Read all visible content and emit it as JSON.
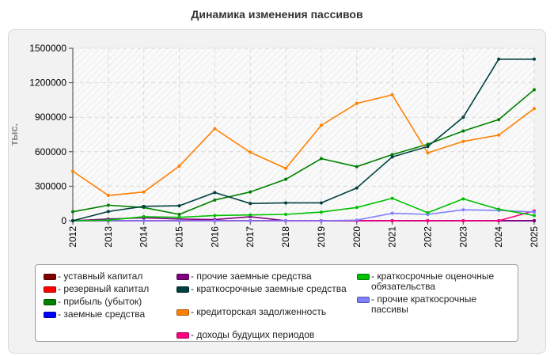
{
  "chart_data": {
    "type": "line",
    "title": "Динамика изменения пассивов",
    "ylabel": "тыс.",
    "xlabel": "",
    "ylim": [
      0,
      1500000
    ],
    "yticks": [
      0,
      300000,
      600000,
      900000,
      1200000,
      1500000
    ],
    "ytick_labels": [
      "0",
      "300000",
      "600000",
      "900000",
      "1200000",
      "1500000"
    ],
    "categories": [
      "2012",
      "2013",
      "2014",
      "2015",
      "2016",
      "2017",
      "2018",
      "2019",
      "2020",
      "2021",
      "2022",
      "2023",
      "2024",
      "2025"
    ],
    "grid": true,
    "legend_position": "bottom",
    "series": [
      {
        "name": "- уставный капитал",
        "color": "#800000",
        "values": [
          0,
          0,
          0,
          0,
          0,
          0,
          0,
          0,
          0,
          0,
          0,
          0,
          0,
          0
        ]
      },
      {
        "name": "- резервный капитал",
        "color": "#ff0000",
        "values": [
          0,
          0,
          0,
          0,
          0,
          0,
          0,
          0,
          0,
          0,
          0,
          0,
          0,
          0
        ]
      },
      {
        "name": "- прибыль (убыток)",
        "color": "#008000",
        "values": [
          78000,
          135000,
          115000,
          55000,
          180000,
          250000,
          360000,
          540000,
          470000,
          575000,
          665000,
          780000,
          880000,
          1140000
        ]
      },
      {
        "name": "- заемные средства",
        "color": "#0000ff",
        "values": [
          0,
          0,
          0,
          0,
          0,
          0,
          0,
          0,
          0,
          0,
          0,
          0,
          0,
          0
        ]
      },
      {
        "name": "- прочие заемные средства",
        "color": "#800080",
        "values": [
          0,
          15000,
          25000,
          15000,
          10000,
          35000,
          0,
          0,
          0,
          0,
          0,
          0,
          0,
          0
        ]
      },
      {
        "name": "- краткосрочные заемные средства",
        "color": "#004040",
        "values": [
          0,
          80000,
          125000,
          130000,
          245000,
          150000,
          155000,
          155000,
          285000,
          555000,
          645000,
          900000,
          1405000,
          1405000
        ]
      },
      {
        "name": "- кредиторская задолженность",
        "color": "#ff8000",
        "values": [
          430000,
          220000,
          250000,
          475000,
          800000,
          595000,
          455000,
          830000,
          1020000,
          1095000,
          590000,
          690000,
          745000,
          975000
        ]
      },
      {
        "name": "- доходы будущих периодов",
        "color": "#ff0080",
        "values": [
          0,
          0,
          0,
          0,
          0,
          0,
          0,
          0,
          0,
          0,
          0,
          0,
          0,
          85000
        ]
      },
      {
        "name": "- краткосрочные оценочные обязательства",
        "color": "#00c000",
        "values": [
          0,
          5000,
          35000,
          30000,
          45000,
          50000,
          55000,
          75000,
          115000,
          195000,
          70000,
          190000,
          100000,
          45000
        ]
      },
      {
        "name": "- прочие краткосрочные пассивы",
        "color": "#8080ff",
        "values": [
          0,
          0,
          0,
          0,
          0,
          0,
          0,
          0,
          5000,
          65000,
          55000,
          95000,
          90000,
          75000
        ]
      }
    ]
  },
  "legend_columns": [
    [
      0,
      1,
      2,
      3
    ],
    [
      4,
      5,
      6,
      7
    ],
    [
      8,
      9
    ]
  ]
}
